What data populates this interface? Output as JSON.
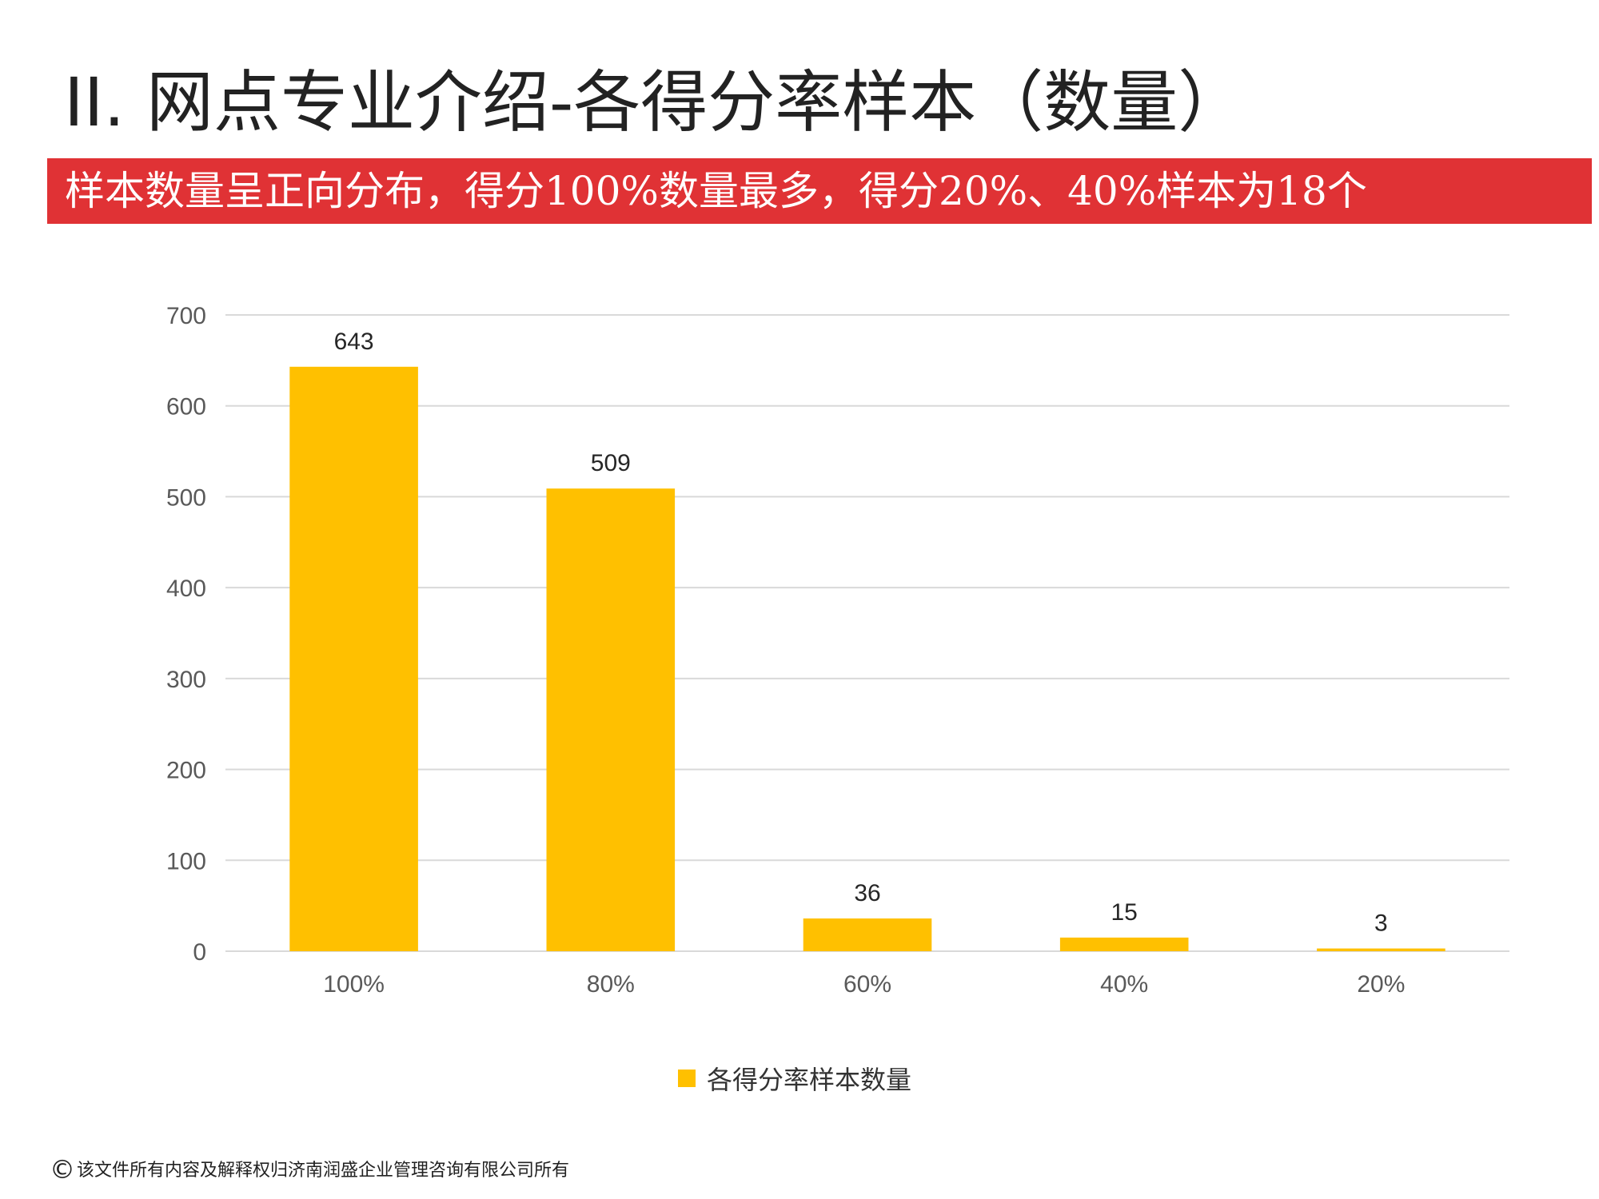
{
  "slide": {
    "title": "II.  网点专业介绍-各得分率样本（数量）",
    "banner": "样本数量呈正向分布，得分100%数量最多，得分20%、40%样本为18个",
    "copyright_mark": "©",
    "copyright_text": "该文件所有内容及解释权归济南润盛企业管理咨询有限公司所有"
  },
  "colors": {
    "banner": "#e03235",
    "bar": "#ffc000",
    "gridline": "#d9d9d9"
  },
  "chart_data": {
    "type": "bar",
    "categories": [
      "100%",
      "80%",
      "60%",
      "40%",
      "20%"
    ],
    "series": [
      {
        "name": "各得分率样本数量",
        "values": [
          643,
          509,
          36,
          15,
          3
        ]
      }
    ],
    "y_ticks": [
      0,
      100,
      200,
      300,
      400,
      500,
      600,
      700
    ],
    "ylim": [
      0,
      700
    ],
    "grid": true,
    "legend": "bottom",
    "data_labels": true
  }
}
